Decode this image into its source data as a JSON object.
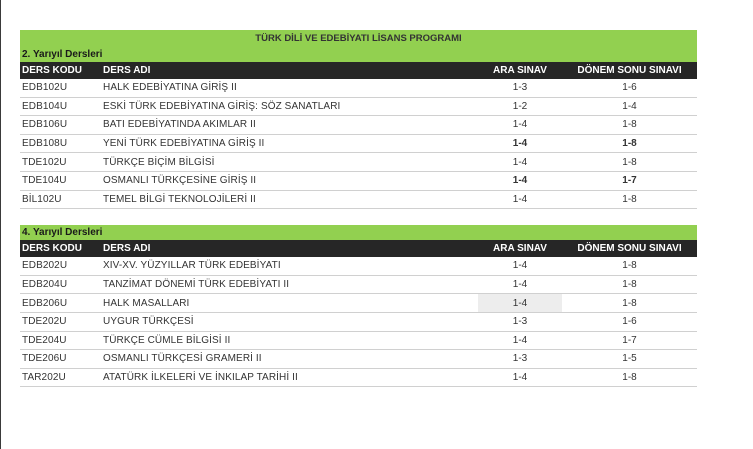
{
  "program_title": "TÜRK DİLİ VE EDEBİYATI LİSANS PROGRAMI",
  "columns": {
    "code": "DERS KODU",
    "name": "DERS ADI",
    "ara": "ARA SINAV",
    "donem": "DÖNEM SONU SINAVI"
  },
  "sections": [
    {
      "title": "2. Yarıyıl Dersleri",
      "rows": [
        {
          "code": "EDB102U",
          "name": "HALK EDEBİYATINA GİRİŞ II",
          "ara": "1-3",
          "donem": "1-6"
        },
        {
          "code": "EDB104U",
          "name": "ESKİ TÜRK EDEBİYATINA GİRİŞ: SÖZ SANATLARI",
          "ara": "1-2",
          "donem": "1-4"
        },
        {
          "code": "EDB106U",
          "name": "BATI EDEBİYATINDA AKIMLAR II",
          "ara": "1-4",
          "donem": "1-8"
        },
        {
          "code": "EDB108U",
          "name": "YENİ TÜRK EDEBİYATINA GİRİŞ II",
          "ara": "1-4",
          "donem": "1-8"
        },
        {
          "code": "TDE102U",
          "name": "TÜRKÇE BİÇİM BİLGİSİ",
          "ara": "1-4",
          "donem": "1-8"
        },
        {
          "code": "TDE104U",
          "name": "OSMANLI TÜRKÇESİNE GİRİŞ II",
          "ara": "1-4",
          "donem": "1-7"
        },
        {
          "code": "BİL102U",
          "name": "TEMEL BİLGİ TEKNOLOJİLERİ II",
          "ara": "1-4",
          "donem": "1-8"
        }
      ]
    },
    {
      "title": "4. Yarıyıl Dersleri",
      "rows": [
        {
          "code": "EDB202U",
          "name": "XIV-XV. YÜZYILLAR TÜRK EDEBİYATI",
          "ara": "1-4",
          "donem": "1-8"
        },
        {
          "code": "EDB204U",
          "name": "TANZİMAT DÖNEMİ TÜRK EDEBİYATI II",
          "ara": "1-4",
          "donem": "1-8"
        },
        {
          "code": "EDB206U",
          "name": "HALK MASALLARI",
          "ara": "1-4",
          "donem": "1-8"
        },
        {
          "code": "TDE202U",
          "name": "UYGUR TÜRKÇESİ",
          "ara": "1-3",
          "donem": "1-6"
        },
        {
          "code": "TDE204U",
          "name": "TÜRKÇE CÜMLE BİLGİSİ II",
          "ara": "1-4",
          "donem": "1-7"
        },
        {
          "code": "TDE206U",
          "name": "OSMANLI TÜRKÇESİ GRAMERİ II",
          "ara": "1-3",
          "donem": "1-5"
        },
        {
          "code": "TAR202U",
          "name": "ATATÜRK İLKELERİ VE İNKILAP TARİHİ II",
          "ara": "1-4",
          "donem": "1-8"
        }
      ]
    }
  ]
}
